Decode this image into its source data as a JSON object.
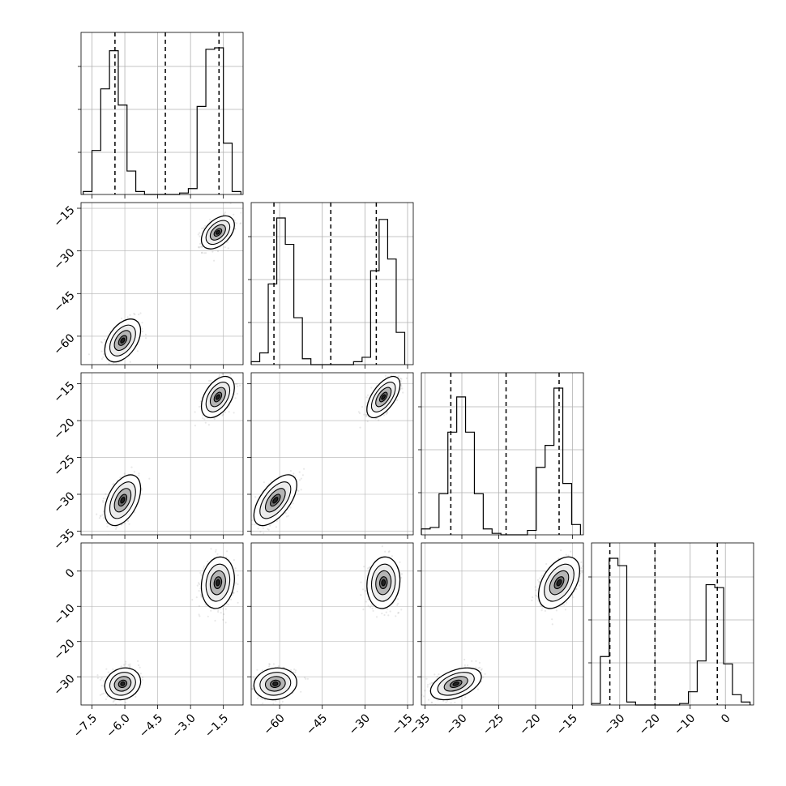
{
  "chart_data": {
    "type": "corner",
    "grid": true,
    "parameters": [
      {
        "range": [
          -8.0,
          -0.6
        ],
        "ticks": [
          -7.5,
          -6.0,
          -4.5,
          -3.0,
          -1.5
        ],
        "tick_labels": [
          "−7.5",
          "−6.0",
          "−4.5",
          "−3.0",
          "−1.5"
        ],
        "quantile_lines": [
          -6.45,
          -4.15,
          -1.7
        ],
        "histogram": {
          "edges": [
            -7.9,
            -7.5,
            -7.1,
            -6.7,
            -6.3,
            -5.9,
            -5.5,
            -5.1,
            -4.7,
            -4.3,
            -3.9,
            -3.5,
            -3.1,
            -2.7,
            -2.3,
            -1.9,
            -1.5,
            -1.1,
            -0.7
          ],
          "counts": [
            0.02,
            0.3,
            0.72,
            0.98,
            0.61,
            0.16,
            0.02,
            0,
            0,
            0,
            0,
            0.01,
            0.04,
            0.6,
            0.99,
            1.0,
            0.35,
            0.02
          ]
        }
      },
      {
        "range": [
          -70,
          -13
        ],
        "ticks": [
          -60,
          -45,
          -30,
          -15
        ],
        "tick_labels": [
          "−60",
          "−45",
          "−30",
          "−15"
        ],
        "quantile_lines": [
          -62,
          -42,
          -26
        ],
        "histogram": {
          "edges": [
            -70,
            -67,
            -64,
            -61,
            -58,
            -55,
            -52,
            -49,
            -46,
            -43,
            -40,
            -37,
            -34,
            -31,
            -28,
            -25,
            -22,
            -19,
            -16
          ],
          "counts": [
            0.02,
            0.08,
            0.55,
            1.0,
            0.82,
            0.32,
            0.04,
            0,
            0,
            0,
            0,
            0,
            0.02,
            0.05,
            0.64,
            0.99,
            0.72,
            0.22
          ]
        }
      },
      {
        "range": [
          -35.5,
          -13.5
        ],
        "ticks": [
          -35,
          -30,
          -25,
          -20,
          -15
        ],
        "tick_labels": [
          "−35",
          "−30",
          "−25",
          "−20",
          "−15"
        ],
        "quantile_lines": [
          -31.5,
          -24.0,
          -16.8
        ],
        "histogram": {
          "edges": [
            -35.5,
            -34.3,
            -33.1,
            -31.9,
            -30.7,
            -29.5,
            -28.3,
            -27.1,
            -25.9,
            -24.7,
            -23.5,
            -22.3,
            -21.1,
            -19.9,
            -18.7,
            -17.5,
            -16.3,
            -15.1,
            -13.9
          ],
          "counts": [
            0.04,
            0.05,
            0.28,
            0.7,
            0.94,
            0.7,
            0.28,
            0.04,
            0.01,
            0,
            0,
            0,
            0.03,
            0.46,
            0.61,
            1.0,
            0.35,
            0.07
          ]
        }
      },
      {
        "range": [
          -38,
          8
        ],
        "ticks": [
          -30,
          -20,
          -10,
          0
        ],
        "tick_labels": [
          "−30",
          "−20",
          "−10",
          "0"
        ],
        "quantile_lines": [
          -32.8,
          -20,
          -2.3
        ],
        "histogram": {
          "edges": [
            -38.0,
            -35.5,
            -33.0,
            -30.5,
            -28.0,
            -25.5,
            -23.0,
            -20.5,
            -18.0,
            -15.5,
            -13.0,
            -10.5,
            -8.0,
            -5.5,
            -3.0,
            -0.5,
            2.0,
            4.5,
            7.0
          ],
          "counts": [
            0.01,
            0.33,
            1.0,
            0.95,
            0.02,
            0,
            0,
            0,
            0,
            0,
            0.01,
            0.09,
            0.3,
            0.82,
            0.8,
            0.28,
            0.07,
            0.02
          ]
        }
      }
    ],
    "clusters": [
      {
        "mean": [
          -6.1,
          -61.5,
          -30.8,
          -32.0
        ],
        "sd": [
          0.38,
          3.5,
          1.6,
          2.1
        ]
      },
      {
        "mean": [
          -1.75,
          -23.5,
          -16.8,
          -3.3
        ],
        "sd": [
          0.35,
          2.7,
          1.3,
          3.4
        ]
      }
    ],
    "correlations": {
      "0-1": 0.45,
      "0-2": 0.45,
      "0-3": 0.15,
      "1-2": 0.6,
      "1-3": 0.1,
      "2-3": 0.45
    }
  }
}
